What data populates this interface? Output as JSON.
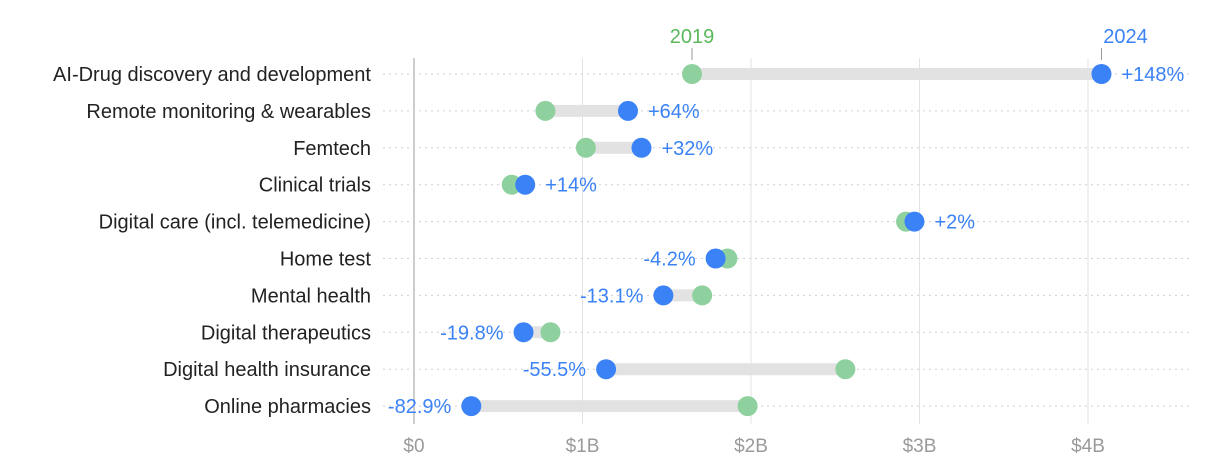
{
  "chart_data": {
    "type": "dumbbell",
    "legend": {
      "start": "2019",
      "end": "2024"
    },
    "x_ticks": [
      "$0",
      "$1B",
      "$2B",
      "$3B",
      "$4B"
    ],
    "xlim": [
      0,
      4.6
    ],
    "grid": true,
    "colors": {
      "start": "#8fd19e",
      "end": "#3b82f6",
      "connector": "#e2e2e2",
      "start_label": "#5cb85c"
    },
    "categories": [
      "AI-Drug discovery and development",
      "Remote monitoring & wearables",
      "Femtech",
      "Clinical trials",
      "Digital care (incl. telemedicine)",
      "Home test",
      "Mental health",
      "Digital therapeutics",
      "Digital health insurance",
      "Online pharmacies"
    ],
    "series": [
      {
        "name": "2019",
        "values": [
          1.65,
          0.78,
          1.02,
          0.58,
          2.92,
          1.86,
          1.71,
          0.81,
          2.56,
          1.98
        ]
      },
      {
        "name": "2024",
        "values": [
          4.08,
          1.27,
          1.35,
          0.66,
          2.97,
          1.79,
          1.48,
          0.65,
          1.14,
          0.34
        ]
      }
    ],
    "change_labels": [
      "+148%",
      "+64%",
      "+32%",
      "+14%",
      "+2%",
      "-4.2%",
      "-13.1%",
      "-19.8%",
      "-55.5%",
      "-82.9%"
    ]
  }
}
